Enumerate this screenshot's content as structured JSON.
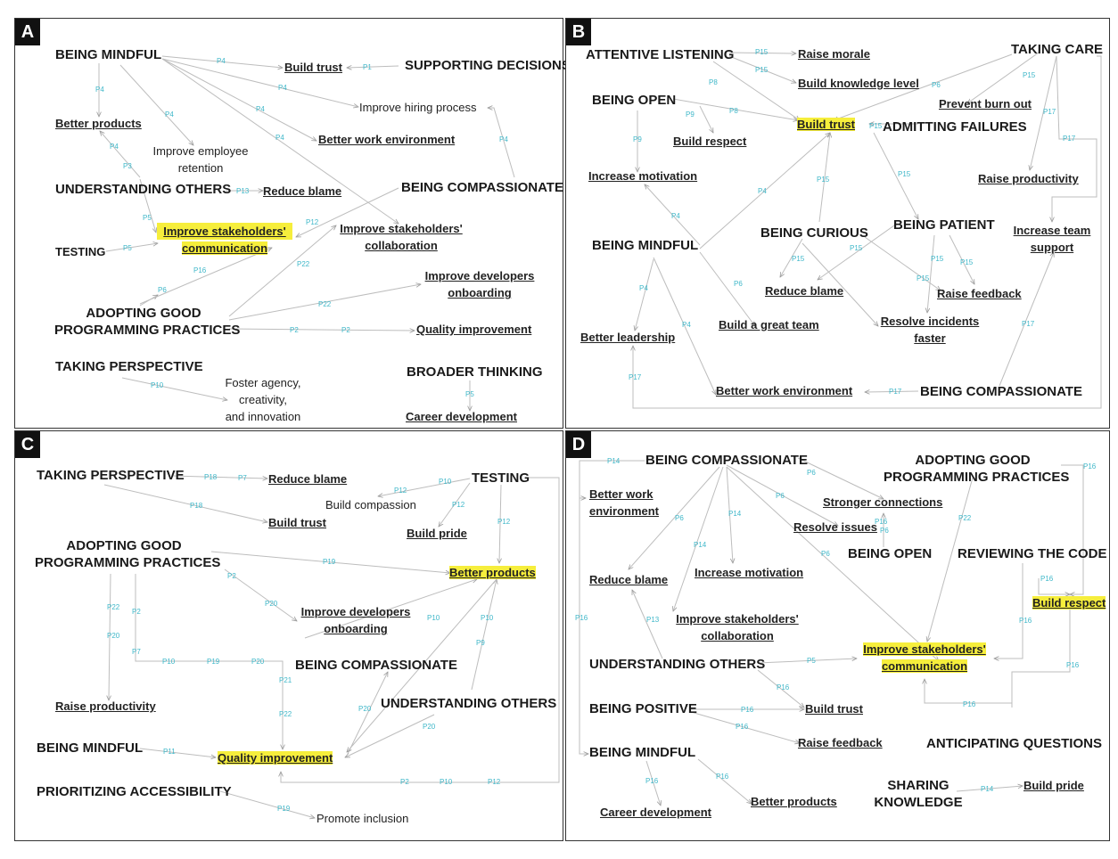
{
  "panels": {
    "A": {
      "label": "A",
      "nodes": {
        "being_mindful": "BEING MINDFUL",
        "build_trust": "Build trust",
        "supporting_decisions": "SUPPORTING DECISIONS",
        "better_products": "Better products",
        "improve_hiring": "Improve hiring process",
        "improve_retention_1": "Improve employee",
        "improve_retention_2": "retention",
        "better_work_env": "Better work environment",
        "understanding_others": "UNDERSTANDING OTHERS",
        "reduce_blame": "Reduce blame",
        "being_compassionate": "BEING COMPASSIONATE",
        "improve_comm_1": "Improve stakeholders'",
        "improve_comm_2": "communication",
        "improve_collab_1": "Improve stakeholders'",
        "improve_collab_2": "collaboration",
        "testing": "TESTING",
        "improve_dev_1": "Improve developers",
        "improve_dev_2": "onboarding",
        "agpp_1": "ADOPTING GOOD",
        "agpp_2": "PROGRAMMING PRACTICES",
        "quality": "Quality improvement",
        "taking_perspective": "TAKING PERSPECTIVE",
        "foster_1": "Foster agency,",
        "foster_2": "creativity,",
        "foster_3": "and innovation",
        "broader": "BROADER THINKING",
        "career": "Career development"
      },
      "edge_labels": [
        "P4",
        "P1",
        "P4",
        "P4",
        "P4",
        "P4",
        "P4",
        "P4",
        "P4",
        "P3",
        "P5",
        "P13",
        "P5",
        "P12",
        "P6",
        "P16",
        "P22",
        "P22",
        "P2",
        "P2",
        "P10",
        "P5",
        "P1"
      ]
    },
    "B": {
      "label": "B",
      "nodes": {
        "attentive": "ATTENTIVE LISTENING",
        "raise_morale": "Raise morale",
        "build_knowledge": "Build knowledge level",
        "taking_care": "TAKING CARE",
        "prevent_burnout": "Prevent burn out",
        "being_open": "BEING OPEN",
        "build_trust": "Build trust",
        "admitting": "ADMITTING FAILURES",
        "build_respect": "Build respect",
        "increase_motivation": "Increase motivation",
        "raise_productivity": "Raise productivity",
        "being_curious": "BEING CURIOUS",
        "being_patient": "BEING PATIENT",
        "being_mindful": "BEING MINDFUL",
        "increase_support_1": "Increase team",
        "increase_support_2": "support",
        "reduce_blame": "Reduce blame",
        "raise_feedback": "Raise feedback",
        "resolve_1": "Resolve incidents",
        "resolve_2": "faster",
        "better_leadership": "Better leadership",
        "great_team": "Build a great team",
        "better_work_env": "Better work environment",
        "being_compassionate": "BEING COMPASSIONATE"
      },
      "edge_labels": [
        "P15",
        "P15",
        "P8",
        "P8",
        "P9",
        "P9",
        "P15",
        "P15",
        "P6",
        "P17",
        "P17",
        "P15",
        "P15",
        "P4",
        "P4",
        "P4",
        "P4",
        "P6",
        "P15",
        "P15",
        "P15",
        "P15",
        "P15",
        "P17",
        "P17",
        "P17"
      ]
    },
    "C": {
      "label": "C",
      "nodes": {
        "taking_perspective": "TAKING PERSPECTIVE",
        "reduce_blame": "Reduce blame",
        "build_trust": "Build trust",
        "testing": "TESTING",
        "build_compassion": "Build compassion",
        "build_pride": "Build pride",
        "agpp_1": "ADOPTING GOOD",
        "agpp_2": "PROGRAMMING PRACTICES",
        "better_products": "Better products",
        "improve_dev_1": "Improve developers",
        "improve_dev_2": "onboarding",
        "being_compassionate": "BEING COMPASSIONATE",
        "understanding_others": "UNDERSTANDING OTHERS",
        "raise_productivity": "Raise productivity",
        "being_mindful": "BEING MINDFUL",
        "quality": "Quality improvement",
        "prioritizing": "PRIORITIZING ACCESSIBILITY",
        "promote_inclusion": "Promote inclusion"
      },
      "edge_labels": [
        "P18",
        "P7",
        "P18",
        "P12",
        "P10",
        "P12",
        "P12",
        "P19",
        "P2",
        "P20",
        "P22",
        "P20",
        "P2",
        "P7",
        "P10",
        "P19",
        "P20",
        "P21",
        "P22",
        "P10",
        "P20",
        "P9",
        "P10",
        "P20",
        "P11",
        "P2",
        "P10",
        "P12",
        "P19"
      ]
    },
    "D": {
      "label": "D",
      "nodes": {
        "being_compassionate": "BEING COMPASSIONATE",
        "agpp_1": "ADOPTING GOOD",
        "agpp_2": "PROGRAMMING PRACTICES",
        "better_work_1": "Better work",
        "better_work_2": "environment",
        "stronger": "Stronger connections",
        "resolve_issues": "Resolve issues",
        "being_open": "BEING OPEN",
        "reviewing": "REVIEWING THE CODE",
        "reduce_blame": "Reduce blame",
        "increase_motivation": "Increase motivation",
        "build_respect": "Build respect",
        "improve_collab_1": "Improve stakeholders'",
        "improve_collab_2": "collaboration",
        "improve_comm_1": "Improve stakeholders'",
        "improve_comm_2": "communication",
        "understanding_others": "UNDERSTANDING OTHERS",
        "being_positive": "BEING POSITIVE",
        "build_trust": "Build trust",
        "raise_feedback": "Raise feedback",
        "anticipating": "ANTICIPATING QUESTIONS",
        "being_mindful": "BEING MINDFUL",
        "better_products": "Better products",
        "career": "Career development",
        "sharing_1": "SHARING",
        "sharing_2": "KNOWLEDGE",
        "build_pride": "Build pride"
      },
      "edge_labels": [
        "P14",
        "P6",
        "P6",
        "P14",
        "P14",
        "P6",
        "P6",
        "P6",
        "P22",
        "P16",
        "P16",
        "P16",
        "P16",
        "P13",
        "P5",
        "P16",
        "P16",
        "P16",
        "P16",
        "P16",
        "P16",
        "P16",
        "P14",
        "P16"
      ]
    }
  }
}
